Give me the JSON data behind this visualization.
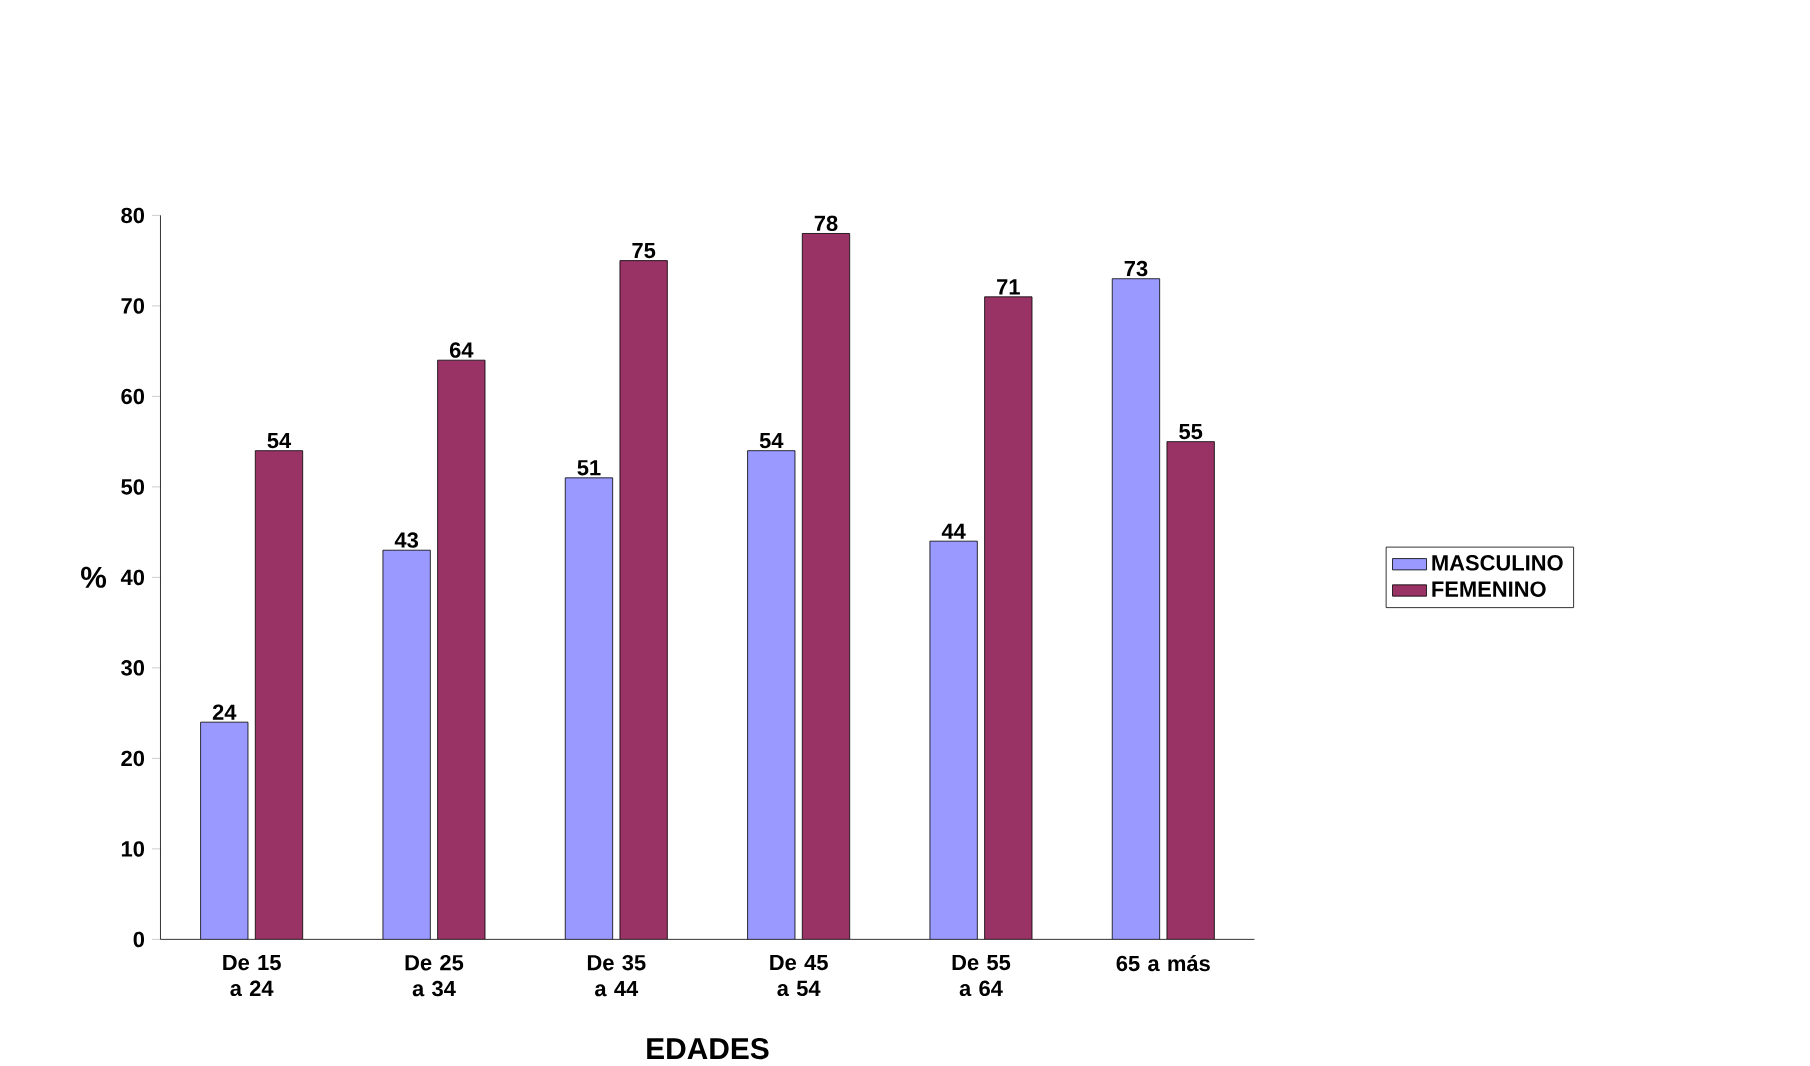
{
  "chart_data": {
    "type": "bar",
    "xlabel": "EDADES",
    "ylabel": "%",
    "categories": [
      "De 15 a 24",
      "De 25 a 34",
      "De 35 a 44",
      "De 45 a 54",
      "De 55 a 64",
      "65 a más"
    ],
    "series": [
      {
        "name": "MASCULINO",
        "color": "#9999ff",
        "values": [
          24,
          43,
          51,
          54,
          44,
          73
        ]
      },
      {
        "name": "FEMENINO",
        "color": "#993366",
        "values": [
          54,
          64,
          75,
          78,
          71,
          55
        ]
      }
    ],
    "ylim": [
      0,
      80
    ],
    "yticks": [
      0,
      10,
      20,
      30,
      40,
      50,
      60,
      70,
      80
    ],
    "data_labels": true,
    "legend": "right",
    "grid": false
  }
}
